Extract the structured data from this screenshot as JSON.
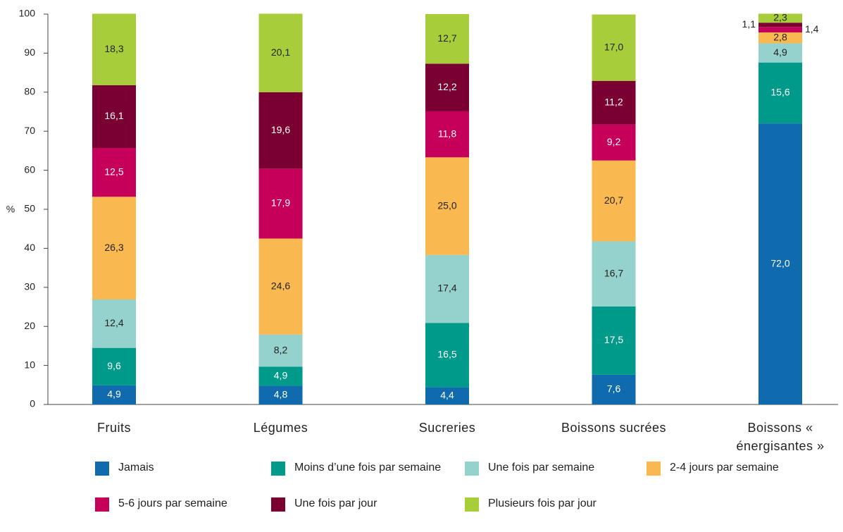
{
  "chart_data": {
    "type": "stacked_bar",
    "ylabel": "%",
    "categories": [
      "Fruits",
      "Légumes",
      "Sucreries",
      "Boissons sucrées",
      "Boissons « énergisantes »"
    ],
    "ylim": [
      0,
      100
    ],
    "yticks": [
      0,
      10,
      20,
      30,
      40,
      50,
      60,
      70,
      80,
      90,
      100
    ],
    "series": [
      {
        "name": "Jamais",
        "color": "#0f6bad",
        "label_color": "#ffffff",
        "values": [
          4.9,
          4.8,
          4.4,
          7.6,
          72.0
        ],
        "value_labels": [
          "4,9",
          "4,8",
          "4,4",
          "7,6",
          "72,0"
        ]
      },
      {
        "name": "Moins d’une fois par semaine",
        "color": "#009a8a",
        "label_color": "#ffffff",
        "values": [
          9.6,
          4.9,
          16.5,
          17.5,
          15.6
        ],
        "value_labels": [
          "9,6",
          "4,9",
          "16,5",
          "17,5",
          "15,6"
        ]
      },
      {
        "name": "Une fois par semaine",
        "color": "#95d1cd",
        "label_color": "#222222",
        "values": [
          12.4,
          8.2,
          17.4,
          16.7,
          4.9
        ],
        "value_labels": [
          "12,4",
          "8,2",
          "17,4",
          "16,7",
          "4,9"
        ]
      },
      {
        "name": "2-4 jours par semaine",
        "color": "#f9b950",
        "label_color": "#222222",
        "values": [
          26.3,
          24.6,
          25.0,
          20.7,
          2.8
        ],
        "value_labels": [
          "26,3",
          "24,6",
          "25,0",
          "20,7",
          "2,8"
        ]
      },
      {
        "name": "5-6 jours par semaine",
        "color": "#c6005a",
        "label_color": "#ffffff",
        "values": [
          12.5,
          17.9,
          11.8,
          9.2,
          1.4
        ],
        "value_labels": [
          "12,5",
          "17,9",
          "11,8",
          "9,2",
          "1,4"
        ]
      },
      {
        "name": "Une fois par jour",
        "color": "#7a0032",
        "label_color": "#ffffff",
        "values": [
          16.1,
          19.6,
          12.2,
          11.2,
          1.1
        ],
        "value_labels": [
          "16,1",
          "19,6",
          "12,2",
          "11,2",
          "1,1"
        ]
      },
      {
        "name": "Plusieurs fois par jour",
        "color": "#a7cd3a",
        "label_color": "#222222",
        "values": [
          18.3,
          20.1,
          12.7,
          17.0,
          2.3
        ],
        "value_labels": [
          "18,3",
          "20,1",
          "12,7",
          "17,0",
          "2,3"
        ]
      }
    ]
  }
}
